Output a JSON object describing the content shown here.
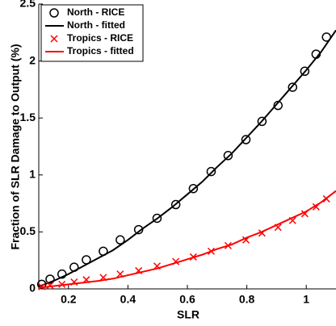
{
  "chart_data": {
    "type": "line",
    "x_label": "SLR",
    "y_label": "Fraction of SLR Damage to Output (%)",
    "xlim": [
      0.1,
      1.1
    ],
    "ylim": [
      0,
      2.5
    ],
    "xticks": [
      0.2,
      0.4,
      0.6,
      0.8,
      1
    ],
    "yticks": [
      0,
      0.5,
      1,
      1.5,
      2,
      2.5
    ],
    "grid": false,
    "legend": "upper left",
    "series": [
      {
        "name": "North - RICE",
        "color": "#000000",
        "marker": "circle",
        "x": [
          0.11,
          0.138,
          0.178,
          0.219,
          0.26,
          0.317,
          0.374,
          0.436,
          0.498,
          0.561,
          0.62,
          0.68,
          0.737,
          0.797,
          0.851,
          0.905,
          0.954,
          0.995,
          1.033,
          1.068
        ],
        "values": [
          0.04,
          0.085,
          0.13,
          0.19,
          0.255,
          0.33,
          0.43,
          0.52,
          0.62,
          0.74,
          0.88,
          1.03,
          1.17,
          1.31,
          1.47,
          1.61,
          1.77,
          1.91,
          2.06,
          2.21
        ]
      },
      {
        "name": "North - fitted",
        "color": "#000000",
        "marker": "line",
        "x": [
          0.1,
          0.15,
          0.2,
          0.25,
          0.3,
          0.35,
          0.4,
          0.45,
          0.5,
          0.55,
          0.6,
          0.65,
          0.7,
          0.75,
          0.8,
          0.85,
          0.9,
          0.95,
          1.0,
          1.05,
          1.1
        ],
        "values": [
          0.02,
          0.07,
          0.13,
          0.2,
          0.27,
          0.34,
          0.43,
          0.53,
          0.62,
          0.72,
          0.83,
          0.94,
          1.07,
          1.19,
          1.33,
          1.47,
          1.62,
          1.77,
          1.92,
          2.08,
          2.27
        ]
      },
      {
        "name": "Tropics - RICE",
        "color": "#ff0000",
        "marker": "x",
        "x": [
          0.11,
          0.138,
          0.178,
          0.219,
          0.26,
          0.317,
          0.374,
          0.436,
          0.498,
          0.561,
          0.62,
          0.68,
          0.737,
          0.797,
          0.851,
          0.905,
          0.954,
          0.995,
          1.033,
          1.068
        ],
        "values": [
          0.02,
          0.03,
          0.04,
          0.06,
          0.08,
          0.1,
          0.13,
          0.16,
          0.2,
          0.24,
          0.28,
          0.33,
          0.38,
          0.43,
          0.49,
          0.54,
          0.6,
          0.66,
          0.72,
          0.79
        ]
      },
      {
        "name": "Tropics - fitted",
        "color": "#ff0000",
        "marker": "line",
        "x": [
          0.1,
          0.15,
          0.2,
          0.25,
          0.3,
          0.35,
          0.4,
          0.45,
          0.5,
          0.55,
          0.6,
          0.65,
          0.7,
          0.75,
          0.8,
          0.85,
          0.9,
          0.95,
          1.0,
          1.05,
          1.1
        ],
        "values": [
          0.01,
          0.025,
          0.04,
          0.055,
          0.07,
          0.09,
          0.12,
          0.15,
          0.18,
          0.22,
          0.26,
          0.3,
          0.35,
          0.39,
          0.45,
          0.5,
          0.56,
          0.62,
          0.68,
          0.76,
          0.86
        ]
      }
    ]
  }
}
